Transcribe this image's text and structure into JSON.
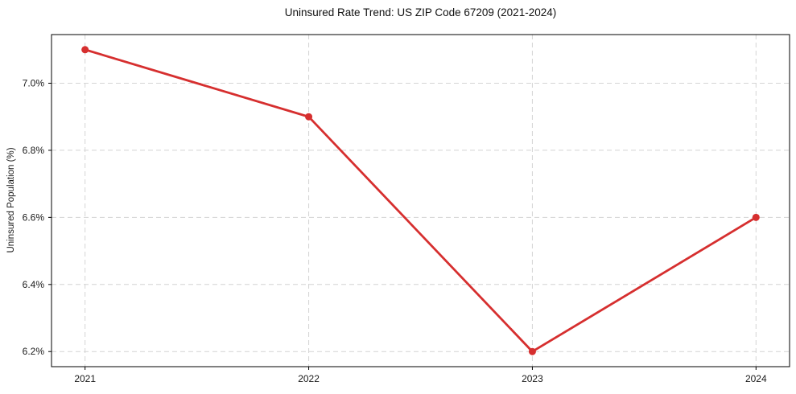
{
  "chart_data": {
    "type": "line",
    "title": "Uninsured Rate Trend: US ZIP Code 67209 (2021-2024)",
    "xlabel": "",
    "ylabel": "Uninsured Population (%)",
    "x": [
      2021,
      2022,
      2023,
      2024
    ],
    "y": [
      7.1,
      6.9,
      6.2,
      6.6
    ],
    "xticks": [
      {
        "value": 2021,
        "label": "2021"
      },
      {
        "value": 2022,
        "label": "2022"
      },
      {
        "value": 2023,
        "label": "2023"
      },
      {
        "value": 2024,
        "label": "2024"
      }
    ],
    "yticks": [
      {
        "value": 6.2,
        "label": "6.2%"
      },
      {
        "value": 6.4,
        "label": "6.4%"
      },
      {
        "value": 6.6,
        "label": "6.6%"
      },
      {
        "value": 6.8,
        "label": "6.8%"
      },
      {
        "value": 7.0,
        "label": "7.0%"
      }
    ],
    "xlim": [
      2020.85,
      2024.15
    ],
    "ylim": [
      6.155,
      7.145
    ],
    "grid": true,
    "legend": false,
    "line_color": "#d62f2f",
    "marker": "circle",
    "marker_radius": 4.5
  }
}
